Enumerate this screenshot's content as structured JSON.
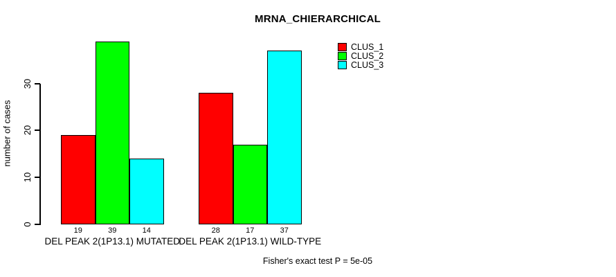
{
  "title": "MRNA_CHIERARCHICAL",
  "ylabel": "number of cases",
  "footer": "Fisher's exact test P = 5e-05",
  "chart_data": {
    "type": "bar",
    "grouped": true,
    "categories": [
      "DEL PEAK 2(1P13.1) MUTATED",
      "DEL PEAK 2(1P13.1) WILD-TYPE"
    ],
    "series": [
      {
        "name": "CLUS_1",
        "color": "#FF0000",
        "values": [
          19,
          28
        ]
      },
      {
        "name": "CLUS_2",
        "color": "#00FF00",
        "values": [
          39,
          17
        ]
      },
      {
        "name": "CLUS_3",
        "color": "#00FFFF",
        "values": [
          14,
          37
        ]
      }
    ],
    "bar_value_labels": [
      [
        "19",
        "39",
        "14"
      ],
      [
        "28",
        "17",
        "37"
      ]
    ],
    "title": "MRNA_CHIERARCHICAL",
    "xlabel": "",
    "ylabel": "number of cases",
    "yticks": [
      0,
      10,
      20,
      30
    ],
    "ylim": [
      0,
      39
    ],
    "grid": false,
    "legend_position": "top-right-inside",
    "annotation": "Fisher's exact test P = 5e-05"
  }
}
